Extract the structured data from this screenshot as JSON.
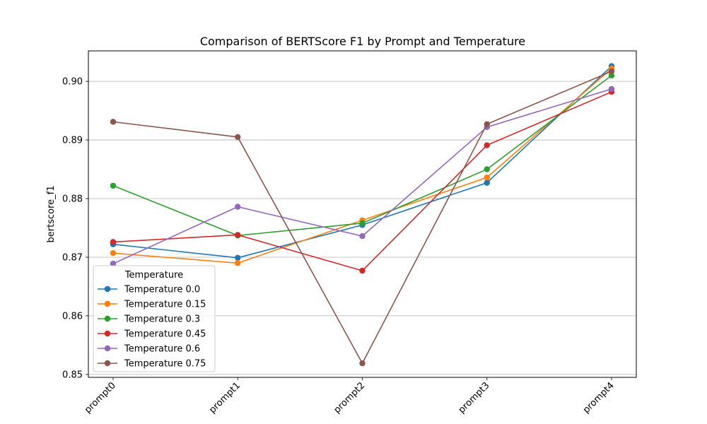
{
  "chart_data": {
    "type": "line",
    "title": "Comparison of BERTScore F1 by Prompt and Temperature",
    "xlabel": "",
    "ylabel": "bertscore_f1",
    "categories": [
      "prompt0",
      "prompt1",
      "prompt2",
      "prompt3",
      "prompt4"
    ],
    "ylim": [
      0.8495,
      0.9052
    ],
    "yticks": [
      0.85,
      0.86,
      0.87,
      0.88,
      0.89,
      0.9
    ],
    "ytick_labels": [
      "0.85",
      "0.86",
      "0.87",
      "0.88",
      "0.89",
      "0.90"
    ],
    "grid": "y-axis",
    "legend_placement": "lower-left",
    "legend_title": "Temperature",
    "series": [
      {
        "name": "Temperature 0.0",
        "color": "#1f77b4",
        "values": [
          0.8722,
          0.8699,
          0.8755,
          0.8827,
          0.9026
        ]
      },
      {
        "name": "Temperature 0.15",
        "color": "#ff7f0e",
        "values": [
          0.8707,
          0.869,
          0.8763,
          0.8836,
          0.9022
        ]
      },
      {
        "name": "Temperature 0.3",
        "color": "#2ca02c",
        "values": [
          0.8822,
          0.8737,
          0.8758,
          0.885,
          0.901
        ]
      },
      {
        "name": "Temperature 0.45",
        "color": "#d62728",
        "values": [
          0.8726,
          0.8738,
          0.8677,
          0.8891,
          0.8982
        ]
      },
      {
        "name": "Temperature 0.6",
        "color": "#9467bd",
        "values": [
          0.8689,
          0.8786,
          0.8736,
          0.8922,
          0.8987
        ]
      },
      {
        "name": "Temperature 0.75",
        "color": "#8c564b",
        "values": [
          0.8931,
          0.8905,
          0.8519,
          0.8927,
          0.9017
        ]
      }
    ]
  }
}
